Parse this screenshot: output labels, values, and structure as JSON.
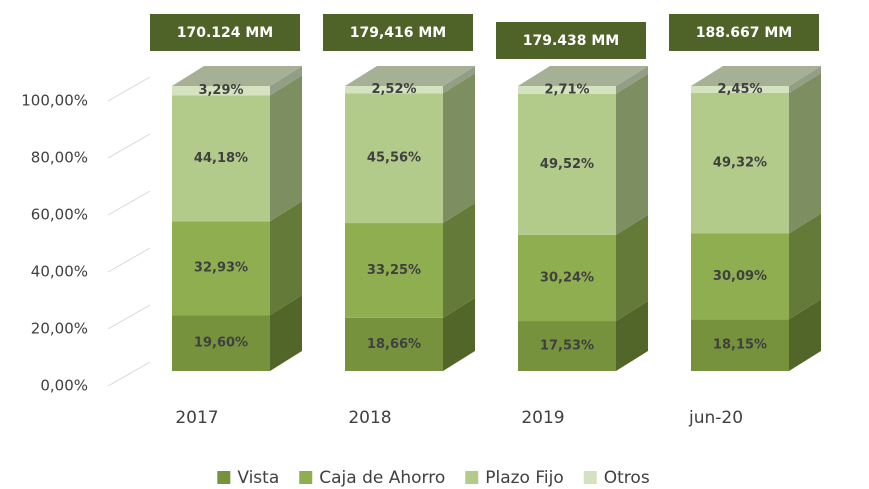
{
  "chart_data": {
    "type": "bar3d_stacked",
    "categories": [
      "2017",
      "2018",
      "2019",
      "jun-20"
    ],
    "series": [
      {
        "name": "Vista",
        "color": "#76923c",
        "values": [
          19.6,
          18.66,
          17.53,
          18.15
        ],
        "value_labels": [
          "19,60%",
          "18,66%",
          "17,53%",
          "18,15%"
        ]
      },
      {
        "name": "Caja de Ahorro",
        "color": "#8fae50",
        "values": [
          32.93,
          33.25,
          30.24,
          30.09
        ],
        "value_labels": [
          "32,93%",
          "33,25%",
          "30,24%",
          "30,09%"
        ]
      },
      {
        "name": "Plazo Fijo",
        "color": "#b3cb8a",
        "values": [
          44.18,
          45.56,
          49.52,
          49.32
        ],
        "value_labels": [
          "44,18%",
          "45,56%",
          "49,52%",
          "49,32%"
        ]
      },
      {
        "name": "Otros",
        "color": "#d4e2bf",
        "values": [
          3.29,
          2.52,
          2.71,
          2.45
        ],
        "value_labels": [
          "3,29%",
          "2,52%",
          "2,71%",
          "2,45%"
        ]
      }
    ],
    "annotations": [
      "170.124 MM",
      "179,416 MM",
      "179.438 MM",
      "188.667 MM"
    ],
    "annotation_color": "#4f6228",
    "ylim": [
      0,
      100
    ],
    "yticks": [
      {
        "value": 0,
        "label": "0,00%"
      },
      {
        "value": 20,
        "label": "20,00%"
      },
      {
        "value": 40,
        "label": "40,00%"
      },
      {
        "value": 60,
        "label": "60,00%"
      },
      {
        "value": 80,
        "label": "80,00%"
      },
      {
        "value": 100,
        "label": "100,00%"
      }
    ],
    "grid": true,
    "legend": "bottom"
  }
}
